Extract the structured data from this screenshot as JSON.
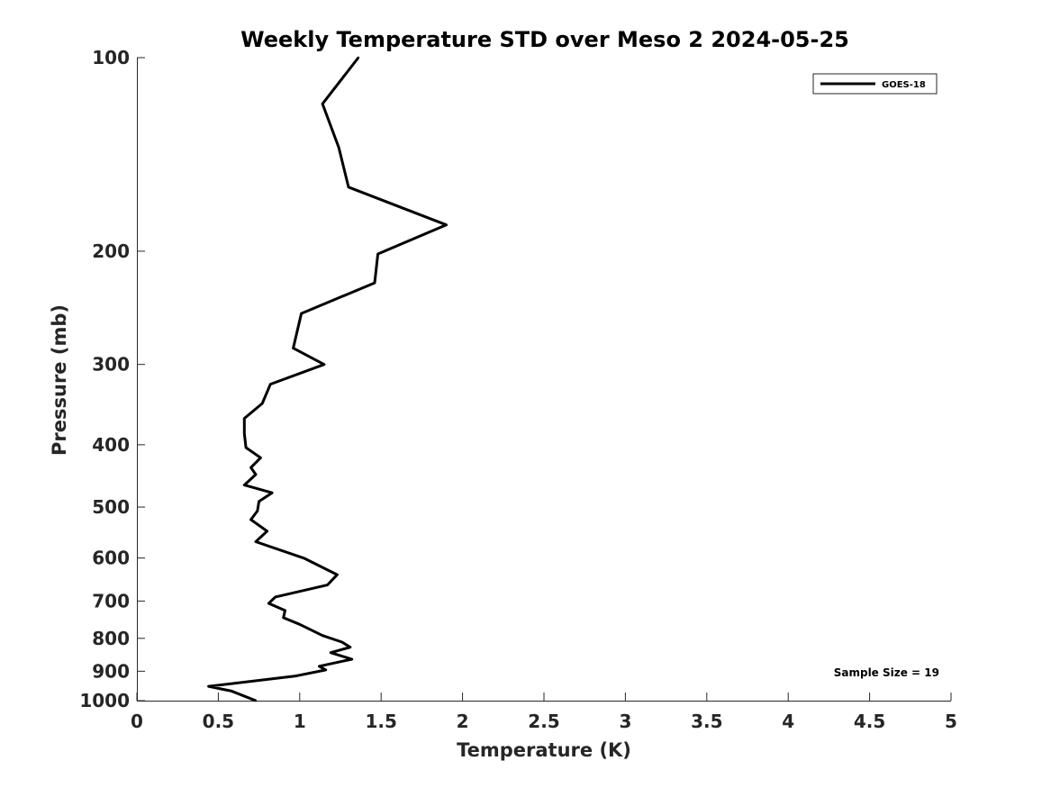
{
  "chart_data": {
    "type": "line",
    "title": "Weekly Temperature STD over Meso 2 2024-05-25",
    "xlabel": "Temperature (K)",
    "ylabel": "Pressure (mb)",
    "xlim": [
      0,
      5
    ],
    "ylim": [
      100,
      1000
    ],
    "y_scale": "log",
    "y_reversed": true,
    "grid": false,
    "x_ticks": [
      "0",
      "0.5",
      "1",
      "1.5",
      "2",
      "2.5",
      "3",
      "3.5",
      "4",
      "4.5",
      "5"
    ],
    "y_ticks": [
      "100",
      "200",
      "300",
      "400",
      "500",
      "600",
      "700",
      "800",
      "900",
      "1000"
    ],
    "legend_position": "top-right",
    "annotation": "Sample Size = 19",
    "series": [
      {
        "name": "GOES-18",
        "color": "#000000",
        "x": [
          1.36,
          1.14,
          1.24,
          1.3,
          1.9,
          1.48,
          1.46,
          1.01,
          0.96,
          1.15,
          0.82,
          0.77,
          0.66,
          0.66,
          0.67,
          0.76,
          0.7,
          0.73,
          0.66,
          0.83,
          0.75,
          0.74,
          0.7,
          0.8,
          0.73,
          1.03,
          1.23,
          1.17,
          0.85,
          0.81,
          0.91,
          0.9,
          1.0,
          1.14,
          1.26,
          1.31,
          1.19,
          1.32,
          1.12,
          1.16,
          0.97,
          0.44,
          0.58,
          0.73
        ],
        "y": [
          100,
          118,
          138,
          159,
          182,
          202,
          224,
          250,
          283,
          300,
          322,
          345,
          364,
          384,
          404,
          419,
          434,
          445,
          462,
          475,
          490,
          507,
          523,
          545,
          566,
          601,
          637,
          661,
          690,
          706,
          724,
          743,
          761,
          792,
          811,
          826,
          842,
          862,
          884,
          896,
          916,
          950,
          966,
          1000
        ]
      }
    ]
  }
}
